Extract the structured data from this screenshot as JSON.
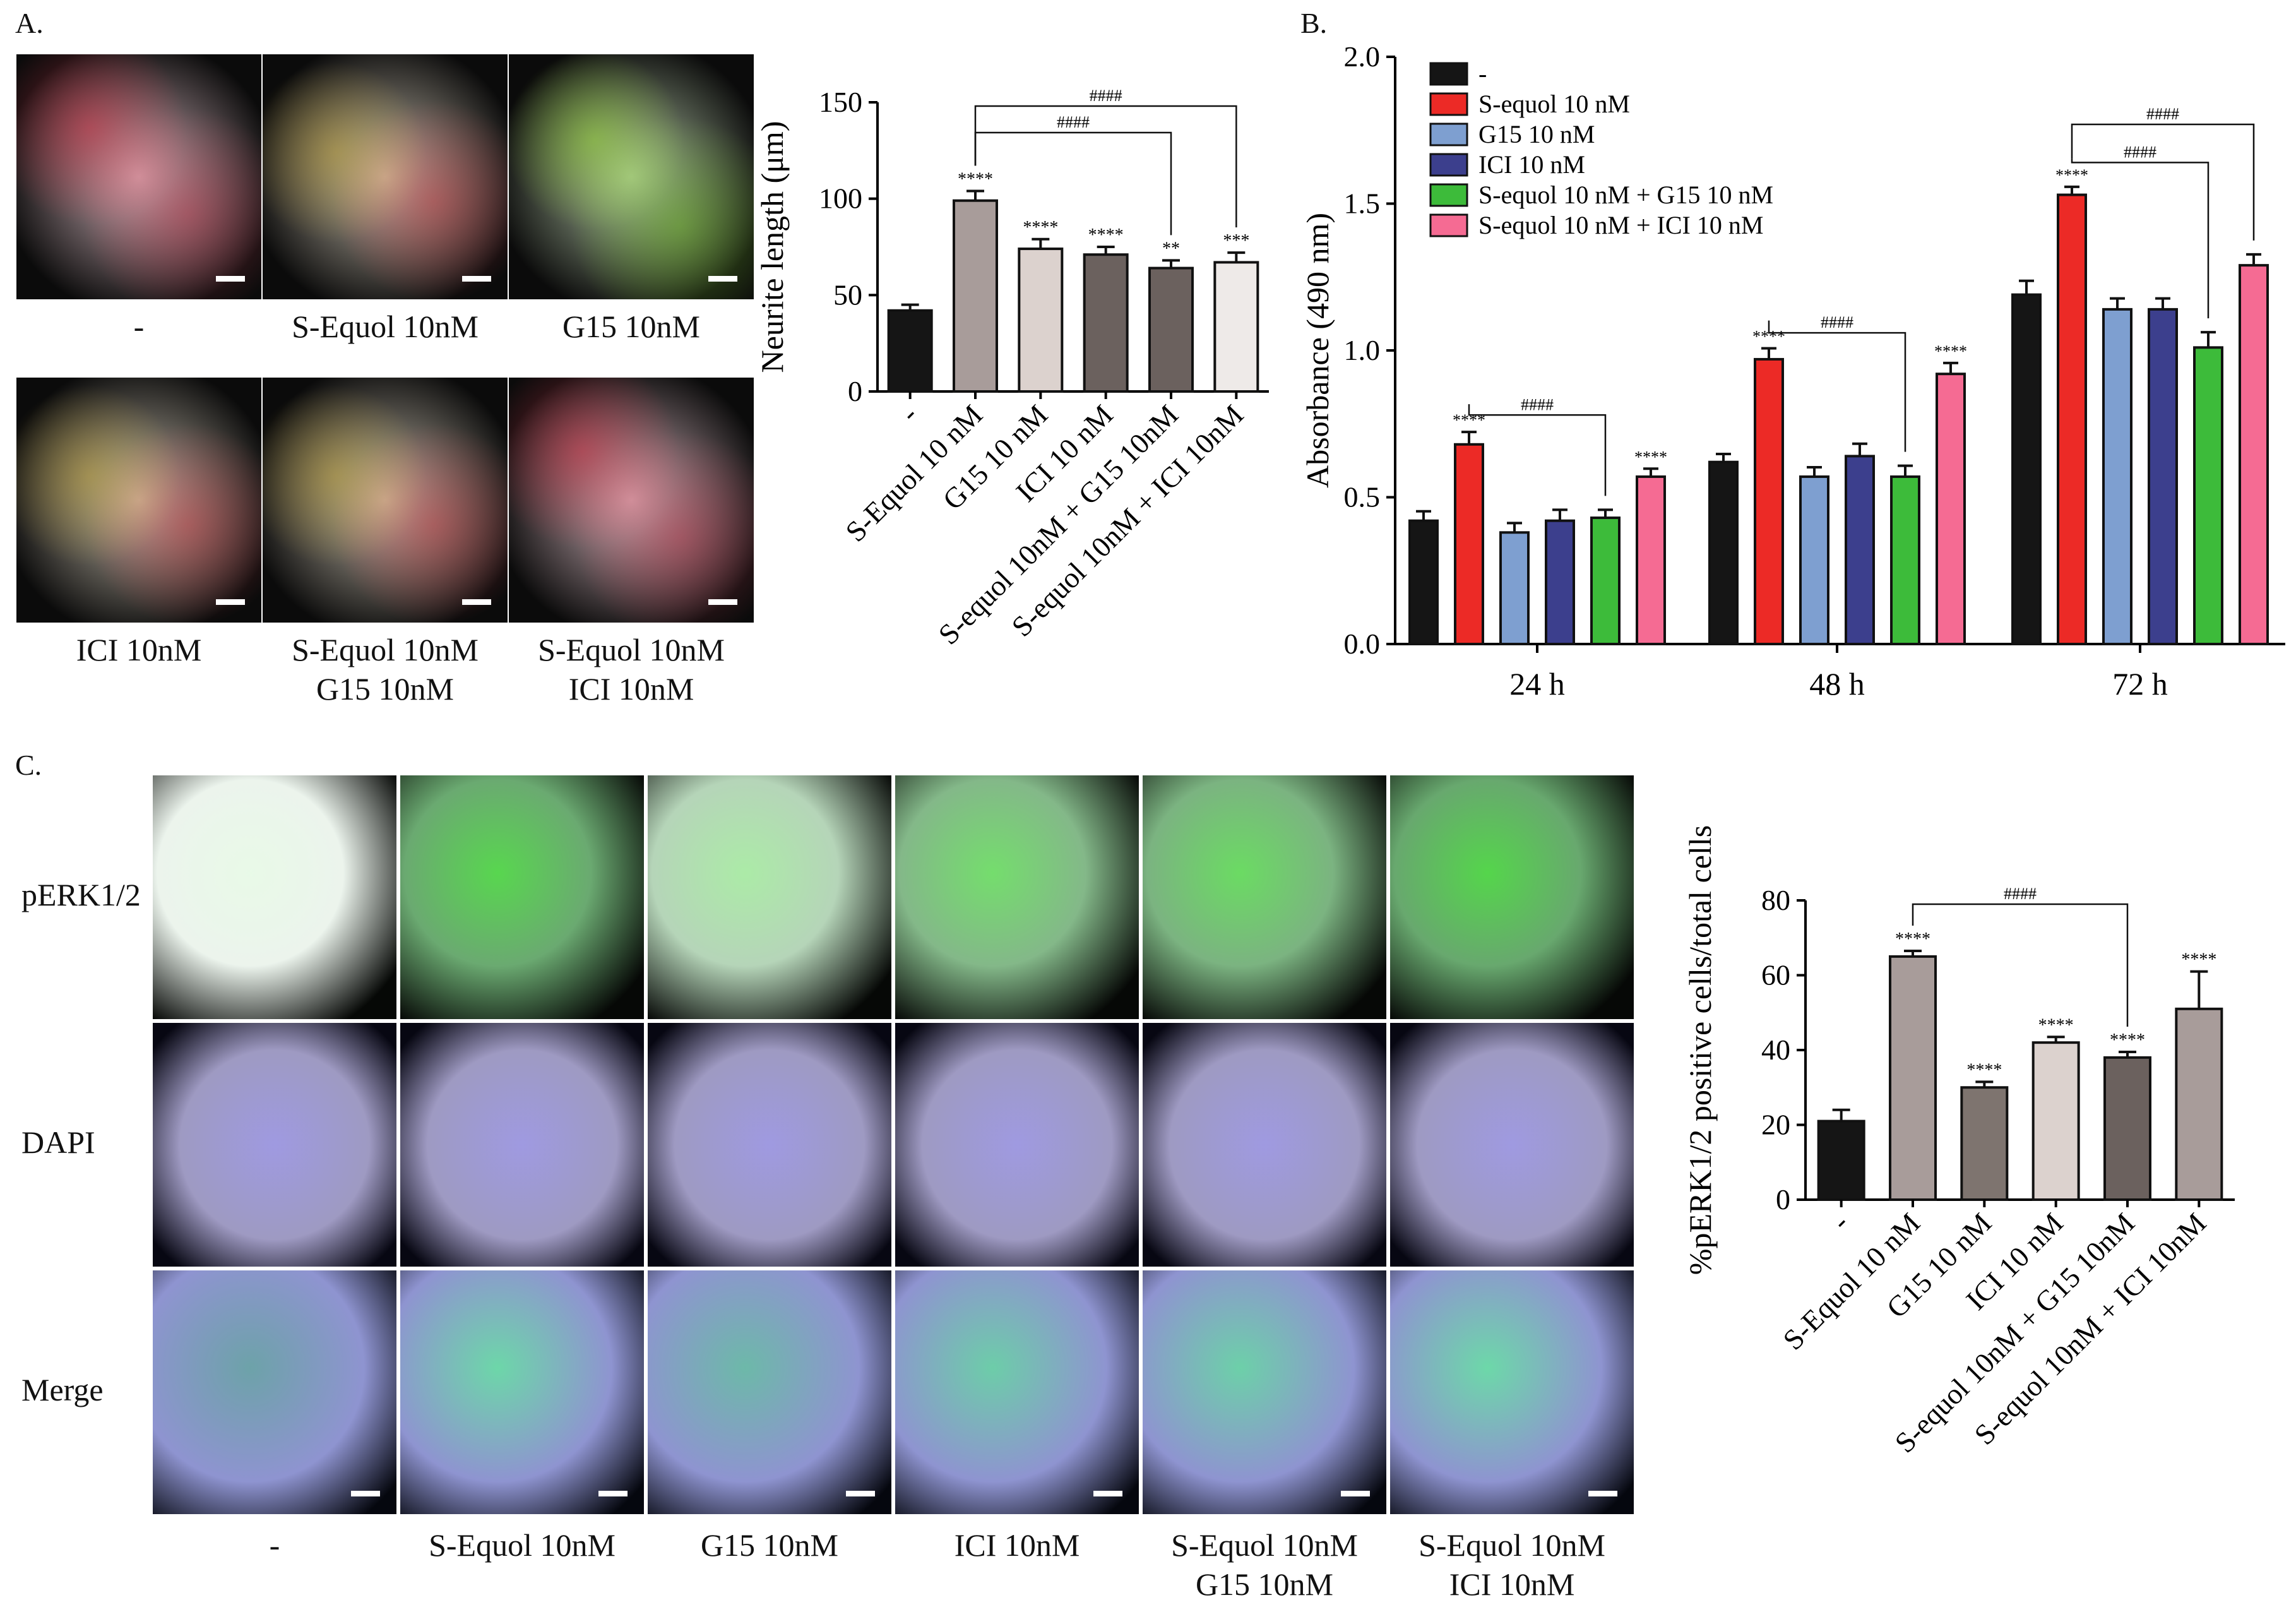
{
  "panelA": {
    "letter": "A.",
    "images": [
      {
        "label": [
          "-"
        ],
        "tint": "red"
      },
      {
        "label": [
          "S-Equol 10nM"
        ],
        "tint": "redgreen"
      },
      {
        "label": [
          "G15 10nM"
        ],
        "tint": "green"
      },
      {
        "label": [
          "ICI 10nM"
        ],
        "tint": "redgreen"
      },
      {
        "label": [
          "S-Equol 10nM",
          "G15 10nM"
        ],
        "tint": "redgreen"
      },
      {
        "label": [
          "S-Equol 10nM",
          "ICI 10nM"
        ],
        "tint": "red"
      }
    ]
  },
  "panelB": {
    "letter": "B."
  },
  "panelC": {
    "letter": "C.",
    "rows": [
      "pERK1/2",
      "DAPI",
      "Merge"
    ],
    "columns": [
      [
        "-"
      ],
      [
        "S-Equol 10nM"
      ],
      [
        "G15 10nM"
      ],
      [
        "ICI 10nM"
      ],
      [
        "S-Equol 10nM",
        "G15 10nM"
      ],
      [
        "S-Equol 10nM",
        "ICI 10nM"
      ]
    ],
    "green_intensity": [
      0.12,
      0.9,
      0.45,
      0.75,
      0.8,
      0.92
    ]
  },
  "chart_data": [
    {
      "id": "neurite",
      "type": "bar",
      "ylabel": "Neurite length (μm)",
      "ylim": [
        0,
        150
      ],
      "yticks": [
        0,
        50,
        100,
        150
      ],
      "categories": [
        "-",
        "S-Equol 10 nM",
        "G15 10 nM",
        "ICI 10 nM",
        "S-equol 10nM + G15 10nM",
        "S-equol 10nM + ICI 10nM"
      ],
      "values": [
        42,
        99,
        74,
        71,
        64,
        67
      ],
      "errors": [
        3,
        5,
        5,
        4,
        4,
        5
      ],
      "colors": [
        "#151515",
        "#a89c9a",
        "#dcd2ce",
        "#6b615e",
        "#6b615e",
        "#eeeae8"
      ],
      "significance": [
        "",
        "****",
        "****",
        "****",
        "**",
        "***"
      ],
      "brackets": [
        {
          "from": 1,
          "to": 4,
          "label": "####"
        },
        {
          "from": 1,
          "to": 5,
          "label": "####"
        }
      ]
    },
    {
      "id": "absorbance",
      "type": "bar",
      "ylabel": "Absorbance (490 nm)",
      "ylim": [
        0,
        2.0
      ],
      "yticks": [
        "0.0",
        "0.5",
        "1.0",
        "1.5",
        "2.0"
      ],
      "categories": [
        "24 h",
        "48 h",
        "72 h"
      ],
      "series": [
        {
          "name": "-",
          "color": "#151515",
          "values": [
            0.42,
            0.62,
            1.19
          ],
          "errors": [
            0.015,
            0.01,
            0.03
          ],
          "sig": [
            "",
            "",
            ""
          ]
        },
        {
          "name": "S-equol 10 nM",
          "color": "#ec2a26",
          "values": [
            0.68,
            0.97,
            1.53
          ],
          "errors": [
            0.025,
            0.02,
            0.01
          ],
          "sig": [
            "****",
            "****",
            "****"
          ]
        },
        {
          "name": "G15 10 nM",
          "color": "#7e9fd0",
          "values": [
            0.38,
            0.57,
            1.14
          ],
          "errors": [
            0.015,
            0.015,
            0.02
          ],
          "sig": [
            "",
            "",
            ""
          ]
        },
        {
          "name": "ICI 10 nM",
          "color": "#3c3f8d",
          "values": [
            0.42,
            0.64,
            1.14
          ],
          "errors": [
            0.02,
            0.025,
            0.02
          ],
          "sig": [
            "",
            "",
            ""
          ]
        },
        {
          "name": "S-equol 10 nM + G15 10 nM",
          "color": "#3dbb3a",
          "values": [
            0.43,
            0.57,
            1.01
          ],
          "errors": [
            0.01,
            0.02,
            0.035
          ],
          "sig": [
            "",
            "",
            ""
          ]
        },
        {
          "name": "S-equol 10 nM + ICI 10 nM",
          "color": "#f56b93",
          "values": [
            0.57,
            0.92,
            1.29
          ],
          "errors": [
            0.01,
            0.02,
            0.02
          ],
          "sig": [
            "****",
            "****",
            ""
          ]
        }
      ],
      "brackets": [
        {
          "group": 0,
          "from": 1,
          "to": 4,
          "label": "####"
        },
        {
          "group": 1,
          "from": 1,
          "to": 4,
          "label": "####"
        },
        {
          "group": 2,
          "from": 1,
          "to": 4,
          "label": "####"
        },
        {
          "group": 2,
          "from": 1,
          "to": 5,
          "label": "####"
        }
      ],
      "legend_position": "top-left"
    },
    {
      "id": "perk",
      "type": "bar",
      "ylabel": "%pERK1/2 positive cells/total cells",
      "ylim": [
        0,
        80
      ],
      "yticks": [
        0,
        20,
        40,
        60,
        80
      ],
      "categories": [
        "-",
        "S-Equol 10 nM",
        "G15 10 nM",
        "ICI 10 nM",
        "S-equol 10nM + G15 10nM",
        "S-equol 10nM + ICI 10nM"
      ],
      "values": [
        21,
        65,
        30,
        42,
        38,
        51
      ],
      "errors": [
        3,
        1.5,
        1.5,
        1.5,
        1.5,
        10
      ],
      "colors": [
        "#151515",
        "#a89c9a",
        "#7e746f",
        "#dcd2ce",
        "#6b615e",
        "#a89c9a"
      ],
      "significance": [
        "",
        "****",
        "****",
        "****",
        "****",
        "****"
      ],
      "brackets": [
        {
          "from": 1,
          "to": 4,
          "label": "####"
        }
      ]
    }
  ]
}
